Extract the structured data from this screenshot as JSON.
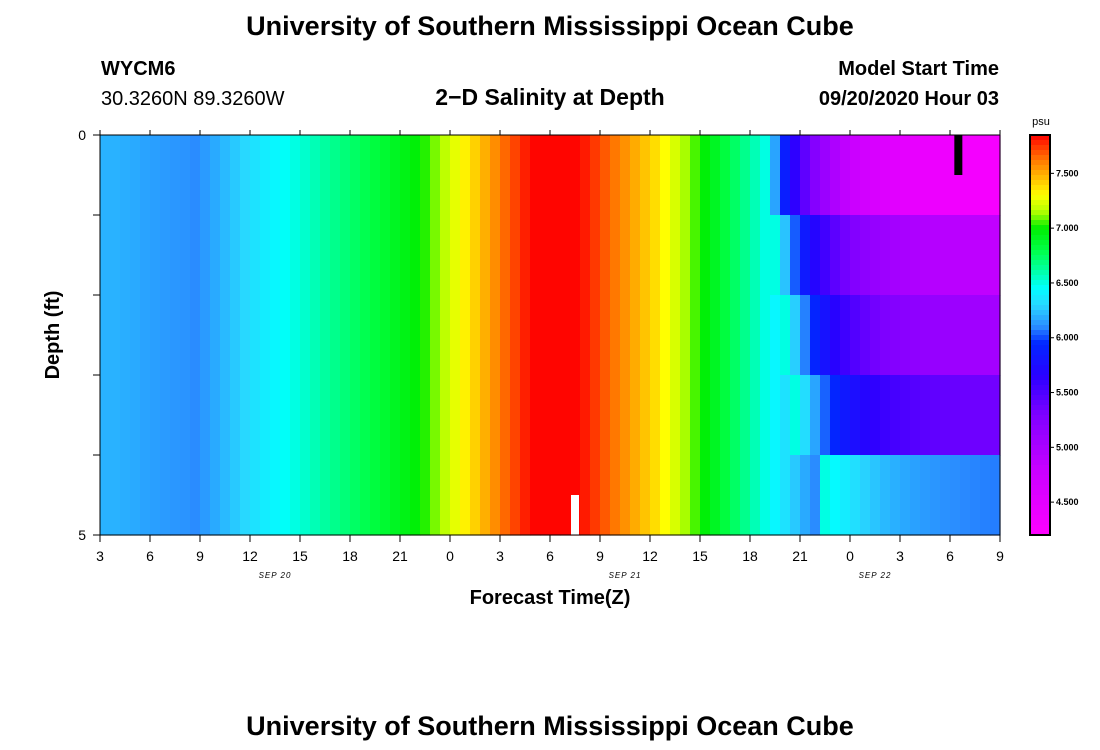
{
  "header": {
    "title_top": "University of Southern Mississippi Ocean Cube",
    "station_id": "WYCM6",
    "station_coords": "30.3260N 89.3260W",
    "plot_title": "2−D Salinity at Depth",
    "model_start_label": "Model Start Time",
    "model_start_value": "09/20/2020 Hour 03",
    "title_bottom": "University of Southern Mississippi Ocean Cube"
  },
  "chart_data": {
    "type": "heatmap",
    "title": "2−D Salinity at Depth",
    "xlabel": "Forecast Time(Z)",
    "ylabel": "Depth (ft)",
    "y_tick_labels": [
      "0",
      "5"
    ],
    "ylim": [
      0,
      5
    ],
    "x_tick_labels": [
      "3",
      "6",
      "9",
      "12",
      "15",
      "18",
      "21",
      "0",
      "3",
      "6",
      "9",
      "12",
      "15",
      "18",
      "21",
      "0",
      "3",
      "6",
      "9"
    ],
    "date_labels": [
      {
        "text": "SEP 20",
        "at_tick": 3.5
      },
      {
        "text": "SEP 21",
        "at_tick": 10.5
      },
      {
        "text": "SEP 22",
        "at_tick": 15.5
      }
    ],
    "colorbar": {
      "unit": "psu",
      "tick_labels": [
        "7.500",
        "7.000",
        "6.500",
        "6.000",
        "5.500",
        "5.000",
        "4.500"
      ],
      "tick_values": [
        7.5,
        7.0,
        6.5,
        6.0,
        5.5,
        5.0,
        4.5
      ],
      "range": [
        4.2,
        7.85
      ]
    },
    "depth_bins": 5,
    "column_values": [
      6.2,
      6.2,
      6.19,
      6.18,
      6.16,
      6.15,
      6.14,
      6.13,
      6.12,
      6.1,
      6.14,
      6.18,
      6.22,
      6.26,
      6.3,
      6.34,
      6.38,
      6.42,
      6.46,
      6.5,
      6.54,
      6.58,
      6.62,
      6.66,
      6.7,
      6.74,
      6.78,
      6.82,
      6.86,
      6.9,
      6.94,
      6.98,
      7.03,
      7.1,
      7.17,
      7.25,
      7.33,
      7.41,
      7.49,
      7.57,
      7.65,
      7.72,
      7.79,
      7.84,
      7.84,
      7.84,
      7.84,
      7.84,
      7.8,
      7.74,
      7.68,
      7.62,
      7.56,
      7.5,
      7.44,
      7.38,
      7.3,
      7.22,
      7.14,
      7.06,
      6.98,
      6.9,
      6.82,
      6.74,
      6.66,
      6.58,
      6.5,
      6.42,
      6.34,
      6.26,
      6.18,
      6.1,
      6.02,
      5.94,
      5.86,
      5.74,
      5.58,
      5.42,
      5.26,
      5.12,
      5.02,
      4.95,
      4.92,
      4.9,
      4.9,
      4.9,
      4.9,
      4.9,
      4.9,
      4.9
    ],
    "transition": {
      "start_index": 66,
      "row_shift_steps": [
        0,
        1,
        2,
        3,
        6
      ],
      "floor_values": [
        4.25,
        4.8,
        5.0,
        5.3,
        6.05
      ],
      "decay": 0.85
    },
    "markers": [
      {
        "type": "white-bar",
        "forecast_hour": 28.5,
        "depth_from": 4.5,
        "depth_to": 5.0,
        "color": "#ffffff"
      },
      {
        "type": "black-bar",
        "forecast_hour": 51.5,
        "depth_from": 0.0,
        "depth_to": 0.5,
        "color": "#000000"
      }
    ],
    "colormap": [
      [
        4.2,
        "#ff00ff"
      ],
      [
        4.8,
        "#c800ff"
      ],
      [
        5.3,
        "#7d00ff"
      ],
      [
        5.65,
        "#2a00ff"
      ],
      [
        5.95,
        "#0028ff"
      ],
      [
        6.1,
        "#2a8cff"
      ],
      [
        6.3,
        "#28d8ff"
      ],
      [
        6.45,
        "#00ffff"
      ],
      [
        6.62,
        "#00ffa0"
      ],
      [
        6.8,
        "#00ff46"
      ],
      [
        7.0,
        "#00ee00"
      ],
      [
        7.15,
        "#b4ff00"
      ],
      [
        7.3,
        "#ffff00"
      ],
      [
        7.45,
        "#ffc000"
      ],
      [
        7.62,
        "#ff7800"
      ],
      [
        7.85,
        "#ff0000"
      ]
    ]
  }
}
